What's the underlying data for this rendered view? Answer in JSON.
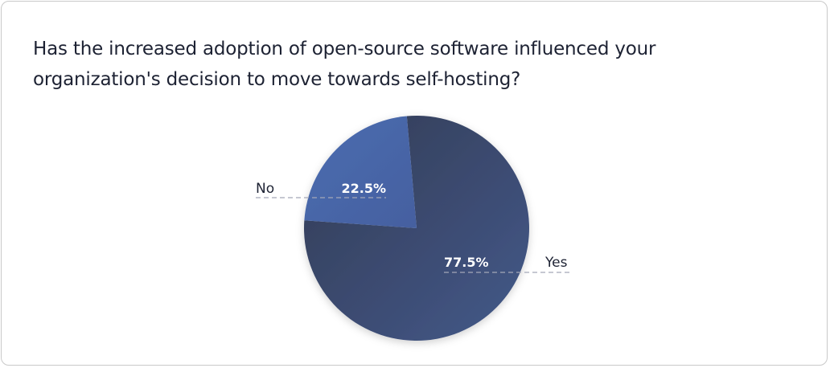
{
  "card": {
    "title": "Has the increased adoption of open-source software influenced your organization's decision to move towards self-hosting?"
  },
  "chart_data": {
    "type": "pie",
    "title": "Has the increased adoption of open-source software influenced your organization's decision to move towards self-hosting?",
    "categories": [
      "No",
      "Yes"
    ],
    "values": [
      22.5,
      77.5
    ],
    "value_labels": [
      "22.5%",
      "77.5%"
    ],
    "colors": [
      "#4a6aa8",
      "#3a4a6c"
    ],
    "legend": "none"
  }
}
